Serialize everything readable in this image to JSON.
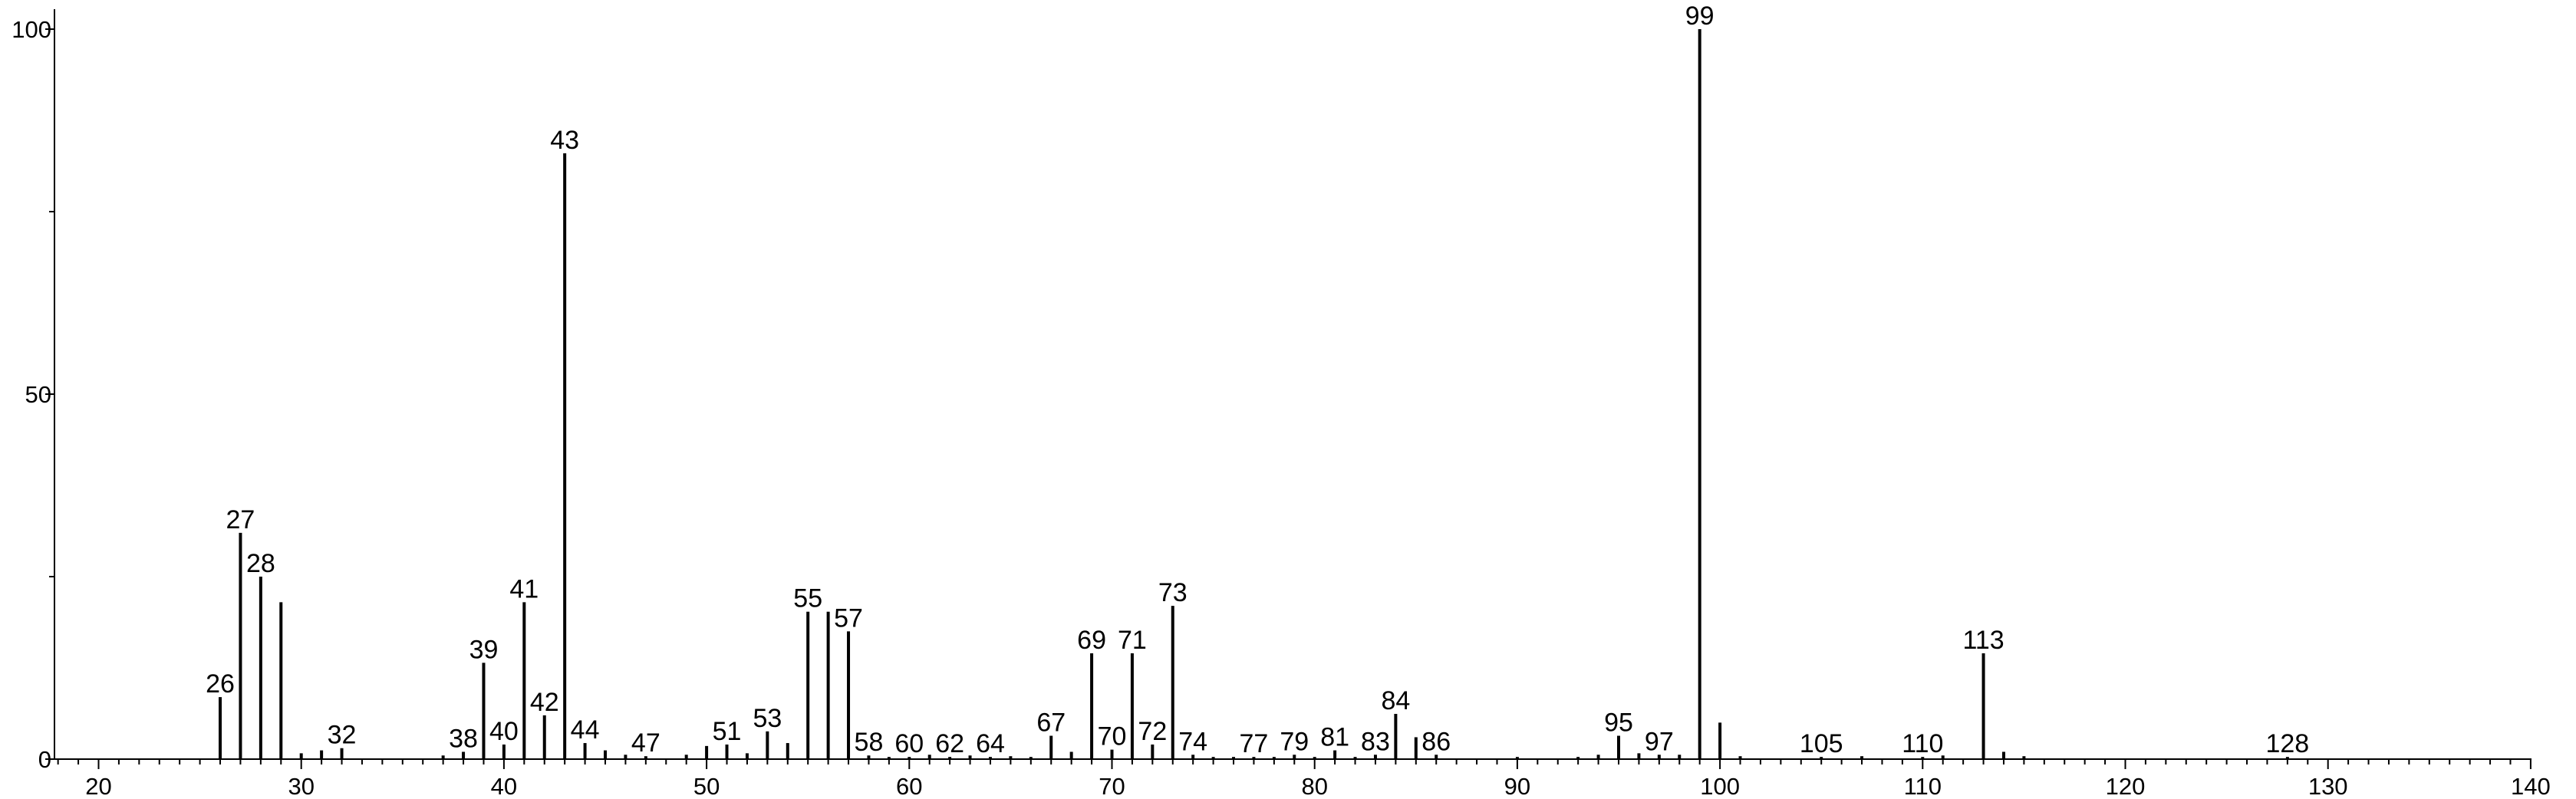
{
  "chart_data": {
    "type": "bar",
    "title": "",
    "xlabel": "",
    "ylabel": "",
    "xlim": [
      18,
      141
    ],
    "ylim": [
      0,
      100
    ],
    "x_ticks": [
      20,
      30,
      40,
      50,
      60,
      70,
      80,
      90,
      100,
      110,
      120,
      130,
      140
    ],
    "y_ticks": [
      0,
      50,
      100
    ],
    "grid": false,
    "legend": "none",
    "peaks": [
      {
        "x": 26,
        "y": 8.5,
        "label": "26"
      },
      {
        "x": 27,
        "y": 31,
        "label": "27"
      },
      {
        "x": 28,
        "y": 25,
        "label": "28"
      },
      {
        "x": 29,
        "y": 21.5,
        "label": ""
      },
      {
        "x": 30,
        "y": 0.8,
        "label": ""
      },
      {
        "x": 31,
        "y": 1.2,
        "label": ""
      },
      {
        "x": 32,
        "y": 1.5,
        "label": "32"
      },
      {
        "x": 37,
        "y": 0.5,
        "label": ""
      },
      {
        "x": 38,
        "y": 1.0,
        "label": "38"
      },
      {
        "x": 39,
        "y": 13.2,
        "label": "39"
      },
      {
        "x": 40,
        "y": 2.0,
        "label": "40"
      },
      {
        "x": 41,
        "y": 21.5,
        "label": "41"
      },
      {
        "x": 42,
        "y": 6.0,
        "label": "42"
      },
      {
        "x": 43,
        "y": 83,
        "label": "43"
      },
      {
        "x": 44,
        "y": 2.2,
        "label": "44"
      },
      {
        "x": 45,
        "y": 1.2,
        "label": ""
      },
      {
        "x": 46,
        "y": 0.6,
        "label": ""
      },
      {
        "x": 47,
        "y": 0.4,
        "label": "47"
      },
      {
        "x": 49,
        "y": 0.6,
        "label": ""
      },
      {
        "x": 50,
        "y": 1.8,
        "label": ""
      },
      {
        "x": 51,
        "y": 2.0,
        "label": "51"
      },
      {
        "x": 52,
        "y": 0.8,
        "label": ""
      },
      {
        "x": 53,
        "y": 3.8,
        "label": "53"
      },
      {
        "x": 54,
        "y": 2.2,
        "label": ""
      },
      {
        "x": 55,
        "y": 20.2,
        "label": "55"
      },
      {
        "x": 56,
        "y": 20.2,
        "label": ""
      },
      {
        "x": 57,
        "y": 17.5,
        "label": "57"
      },
      {
        "x": 58,
        "y": 0.5,
        "label": "58"
      },
      {
        "x": 59,
        "y": 0.3,
        "label": ""
      },
      {
        "x": 60,
        "y": 0.3,
        "label": "60"
      },
      {
        "x": 61,
        "y": 0.6,
        "label": ""
      },
      {
        "x": 62,
        "y": 0.3,
        "label": "62"
      },
      {
        "x": 63,
        "y": 0.5,
        "label": ""
      },
      {
        "x": 64,
        "y": 0.3,
        "label": "64"
      },
      {
        "x": 65,
        "y": 0.4,
        "label": ""
      },
      {
        "x": 66,
        "y": 0.3,
        "label": ""
      },
      {
        "x": 67,
        "y": 3.2,
        "label": "67"
      },
      {
        "x": 68,
        "y": 1.0,
        "label": ""
      },
      {
        "x": 69,
        "y": 14.5,
        "label": "69"
      },
      {
        "x": 70,
        "y": 1.3,
        "label": "70"
      },
      {
        "x": 71,
        "y": 14.5,
        "label": "71"
      },
      {
        "x": 72,
        "y": 2.0,
        "label": "72"
      },
      {
        "x": 73,
        "y": 21.0,
        "label": "73"
      },
      {
        "x": 74,
        "y": 0.6,
        "label": "74"
      },
      {
        "x": 75,
        "y": 0.3,
        "label": ""
      },
      {
        "x": 76,
        "y": 0.3,
        "label": ""
      },
      {
        "x": 77,
        "y": 0.3,
        "label": "77"
      },
      {
        "x": 78,
        "y": 0.3,
        "label": ""
      },
      {
        "x": 79,
        "y": 0.6,
        "label": "79"
      },
      {
        "x": 80,
        "y": 0.3,
        "label": ""
      },
      {
        "x": 81,
        "y": 1.2,
        "label": "81"
      },
      {
        "x": 82,
        "y": 0.3,
        "label": ""
      },
      {
        "x": 83,
        "y": 0.6,
        "label": "83"
      },
      {
        "x": 84,
        "y": 6.2,
        "label": "84"
      },
      {
        "x": 85,
        "y": 3.0,
        "label": ""
      },
      {
        "x": 86,
        "y": 0.6,
        "label": "86"
      },
      {
        "x": 90,
        "y": 0.3,
        "label": ""
      },
      {
        "x": 93,
        "y": 0.3,
        "label": ""
      },
      {
        "x": 94,
        "y": 0.6,
        "label": ""
      },
      {
        "x": 95,
        "y": 3.2,
        "label": "95"
      },
      {
        "x": 96,
        "y": 0.8,
        "label": ""
      },
      {
        "x": 97,
        "y": 0.6,
        "label": "97"
      },
      {
        "x": 98,
        "y": 0.6,
        "label": ""
      },
      {
        "x": 99,
        "y": 100,
        "label": "99"
      },
      {
        "x": 100,
        "y": 5.0,
        "label": ""
      },
      {
        "x": 101,
        "y": 0.4,
        "label": ""
      },
      {
        "x": 105,
        "y": 0.3,
        "label": "105"
      },
      {
        "x": 107,
        "y": 0.4,
        "label": ""
      },
      {
        "x": 110,
        "y": 0.3,
        "label": "110"
      },
      {
        "x": 111,
        "y": 0.5,
        "label": ""
      },
      {
        "x": 113,
        "y": 14.5,
        "label": "113"
      },
      {
        "x": 114,
        "y": 1.0,
        "label": ""
      },
      {
        "x": 115,
        "y": 0.4,
        "label": ""
      },
      {
        "x": 128,
        "y": 0.3,
        "label": "128"
      }
    ]
  }
}
